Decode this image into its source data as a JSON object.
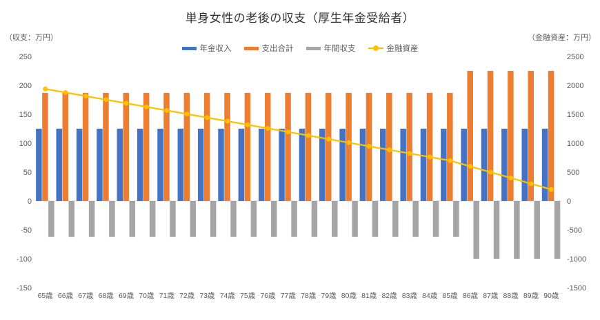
{
  "chart_title": "単身女性の老後の収支（厚生年金受給者）",
  "left_axis_caption": "（収支：万円）",
  "right_axis_caption": "（金融資産：万円）",
  "colors": {
    "pension_blue": "#4472C4",
    "expenses_orange": "#ED7D31",
    "balance_gray": "#A5A5A5",
    "assets_yellow": "#FFC000",
    "axis_text": "#595959",
    "zero_line": "#D9D9D9",
    "title_text": "#333333"
  },
  "chart_data": {
    "type": "bar",
    "subtype": "combo-bar-line",
    "title": "単身女性の老後の収支（厚生年金受給者）",
    "categories": [
      "65歳",
      "66歳",
      "67歳",
      "68歳",
      "69歳",
      "70歳",
      "71歳",
      "72歳",
      "73歳",
      "74歳",
      "75歳",
      "76歳",
      "77歳",
      "78歳",
      "79歳",
      "80歳",
      "81歳",
      "82歳",
      "83歳",
      "84歳",
      "85歳",
      "86歳",
      "87歳",
      "88歳",
      "89歳",
      "90歳"
    ],
    "series": [
      {
        "key": "pension",
        "name": "年金収入",
        "type": "bar",
        "axis": "left",
        "color": "#4472C4",
        "values": [
          125,
          125,
          125,
          125,
          125,
          125,
          125,
          125,
          125,
          125,
          125,
          125,
          125,
          125,
          125,
          125,
          125,
          125,
          125,
          125,
          125,
          125,
          125,
          125,
          125,
          125
        ]
      },
      {
        "key": "expenses",
        "name": "支出合計",
        "type": "bar",
        "axis": "left",
        "color": "#ED7D31",
        "values": [
          187,
          187,
          187,
          187,
          187,
          187,
          187,
          187,
          187,
          187,
          187,
          187,
          187,
          187,
          187,
          187,
          187,
          187,
          187,
          187,
          187,
          225,
          225,
          225,
          225,
          225
        ]
      },
      {
        "key": "balance",
        "name": "年間収支",
        "type": "bar",
        "axis": "left",
        "color": "#A5A5A5",
        "values": [
          -62,
          -62,
          -62,
          -62,
          -62,
          -62,
          -62,
          -62,
          -62,
          -62,
          -62,
          -62,
          -62,
          -62,
          -62,
          -62,
          -62,
          -62,
          -62,
          -62,
          -62,
          -100,
          -100,
          -100,
          -100,
          -100
        ]
      },
      {
        "key": "assets",
        "name": "金融資産",
        "type": "line",
        "axis": "right",
        "color": "#FFC000",
        "values": [
          1938,
          1876,
          1814,
          1752,
          1690,
          1628,
          1566,
          1504,
          1442,
          1380,
          1318,
          1256,
          1194,
          1132,
          1070,
          1008,
          946,
          884,
          822,
          760,
          698,
          598,
          498,
          398,
          298,
          198
        ]
      }
    ],
    "left_axis": {
      "caption": "（収支：万円）",
      "min": -150,
      "max": 250,
      "ticks": [
        250,
        200,
        150,
        100,
        50,
        0,
        -50,
        -100,
        -150
      ]
    },
    "right_axis": {
      "caption": "（金融資産：万円）",
      "min": -1500,
      "max": 2500,
      "ticks": [
        2500,
        2000,
        1500,
        1000,
        500,
        0,
        -500,
        -1000,
        -1500
      ]
    },
    "gridlines": false,
    "legend_position": "top"
  }
}
